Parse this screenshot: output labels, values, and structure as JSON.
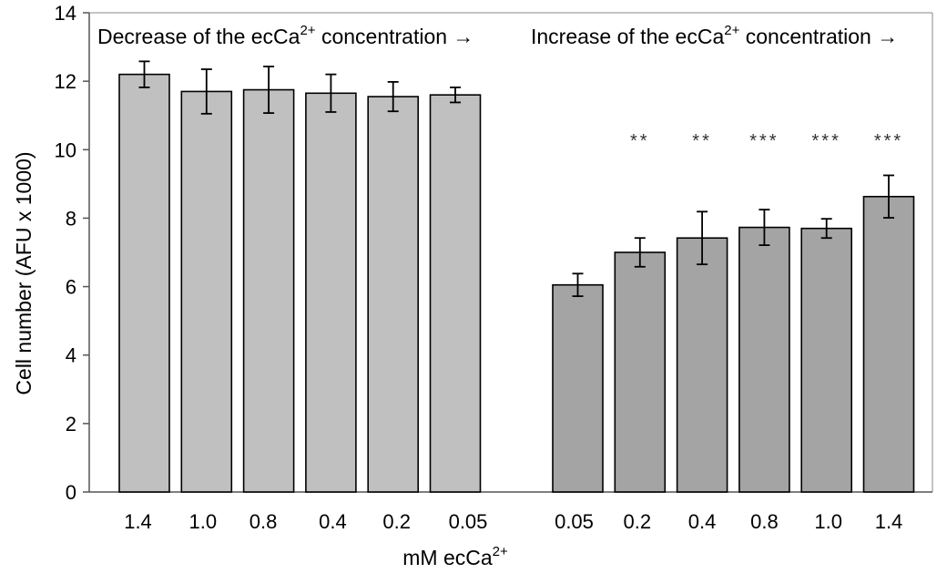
{
  "chart_data": {
    "type": "bar",
    "ylabel": "Cell number (AFU x 1000)",
    "xlabel_main": "mM ecCa",
    "xlabel_sup": "2+",
    "ylim": [
      0,
      14
    ],
    "yticks": [
      0,
      2,
      4,
      6,
      8,
      10,
      12,
      14
    ],
    "grid": false,
    "groups": [
      {
        "header_main": "Decrease of the ecCa",
        "header_sup": "2+",
        "header_tail": " concentration →",
        "color": "#c0c0c0",
        "categories": [
          "1.4",
          "1.0",
          "0.8",
          "0.4",
          "0.2",
          "0.05"
        ],
        "values": [
          12.2,
          11.7,
          11.75,
          11.65,
          11.55,
          11.6
        ],
        "errors": [
          0.38,
          0.65,
          0.68,
          0.55,
          0.43,
          0.22
        ],
        "significance": [
          "",
          "",
          "",
          "",
          "",
          ""
        ]
      },
      {
        "header_main": "Increase of the ecCa",
        "header_sup": "2+",
        "header_tail": " concentration →",
        "color": "#a4a4a4",
        "categories": [
          "0.05",
          "0.2",
          "0.4",
          "0.8",
          "1.0",
          "1.4"
        ],
        "values": [
          6.05,
          7.0,
          7.42,
          7.73,
          7.7,
          8.63
        ],
        "errors": [
          0.33,
          0.42,
          0.77,
          0.52,
          0.28,
          0.62
        ],
        "significance": [
          "",
          "**",
          "**",
          "***",
          "***",
          "***"
        ]
      }
    ]
  }
}
